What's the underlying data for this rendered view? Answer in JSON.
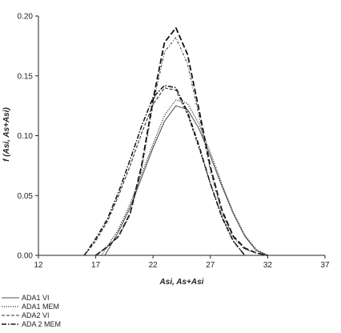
{
  "chart_data": {
    "type": "line",
    "title": "",
    "xlabel": "Asi, As+Asi",
    "ylabel": "f (Asi, As+Asi)",
    "xlim": [
      12,
      37
    ],
    "ylim": [
      0,
      0.2
    ],
    "x_ticks": [
      "12",
      "17",
      "22",
      "27",
      "32",
      "37"
    ],
    "y_ticks": [
      "0.00",
      "0.05",
      "0.10",
      "0.15",
      "0.20"
    ],
    "grid": false,
    "legend_position": "below-left",
    "series": [
      {
        "name": "ADA1 VI",
        "style": "solid",
        "color": "#555555",
        "x": [
          17.8,
          19,
          20,
          21,
          22,
          23,
          24,
          25,
          26,
          27,
          28,
          29,
          30,
          31,
          32
        ],
        "y": [
          0.0,
          0.02,
          0.04,
          0.065,
          0.09,
          0.112,
          0.125,
          0.122,
          0.106,
          0.083,
          0.058,
          0.035,
          0.016,
          0.004,
          0.0
        ]
      },
      {
        "name": "ADA1 MEM",
        "style": "dotted",
        "color": "#333333",
        "x": [
          17.5,
          19,
          20,
          21,
          22,
          23,
          24,
          25,
          26,
          27,
          28,
          29,
          30,
          31,
          32
        ],
        "y": [
          0.0,
          0.022,
          0.043,
          0.068,
          0.093,
          0.117,
          0.13,
          0.127,
          0.11,
          0.086,
          0.06,
          0.036,
          0.017,
          0.005,
          0.0
        ]
      },
      {
        "name": "ADA2 VI",
        "style": "dash",
        "color": "#333333",
        "x": [
          16,
          17,
          18,
          19,
          20,
          21,
          22,
          23,
          24,
          25,
          26,
          27,
          28,
          29,
          30
        ],
        "y": [
          0.0,
          0.012,
          0.028,
          0.05,
          0.075,
          0.102,
          0.126,
          0.14,
          0.138,
          0.118,
          0.09,
          0.06,
          0.033,
          0.012,
          0.0
        ]
      },
      {
        "name": "ADA 2 MEM",
        "style": "dashdot",
        "color": "#111111",
        "x": [
          16,
          17,
          18,
          19,
          20,
          21,
          22,
          23,
          24,
          25,
          26,
          27,
          28,
          29,
          30
        ],
        "y": [
          0.0,
          0.014,
          0.03,
          0.053,
          0.08,
          0.108,
          0.132,
          0.142,
          0.14,
          0.12,
          0.092,
          0.06,
          0.032,
          0.012,
          0.0
        ]
      },
      {
        "name": "",
        "style": "dashed-heavy",
        "color": "#111111",
        "x": [
          17,
          18,
          19,
          20,
          21,
          22,
          23,
          24,
          25,
          26,
          27,
          28,
          29,
          30,
          31,
          32
        ],
        "y": [
          0.0,
          0.007,
          0.016,
          0.035,
          0.075,
          0.13,
          0.178,
          0.19,
          0.168,
          0.122,
          0.074,
          0.038,
          0.016,
          0.006,
          0.002,
          0.0
        ]
      },
      {
        "name": "",
        "style": "dotdash-light",
        "color": "#444444",
        "x": [
          17,
          18,
          19,
          20,
          21,
          22,
          23,
          24,
          25,
          26,
          27,
          28,
          29,
          30,
          31,
          32
        ],
        "y": [
          0.0,
          0.007,
          0.016,
          0.034,
          0.072,
          0.126,
          0.17,
          0.182,
          0.16,
          0.117,
          0.071,
          0.036,
          0.015,
          0.005,
          0.002,
          0.0
        ]
      }
    ]
  }
}
